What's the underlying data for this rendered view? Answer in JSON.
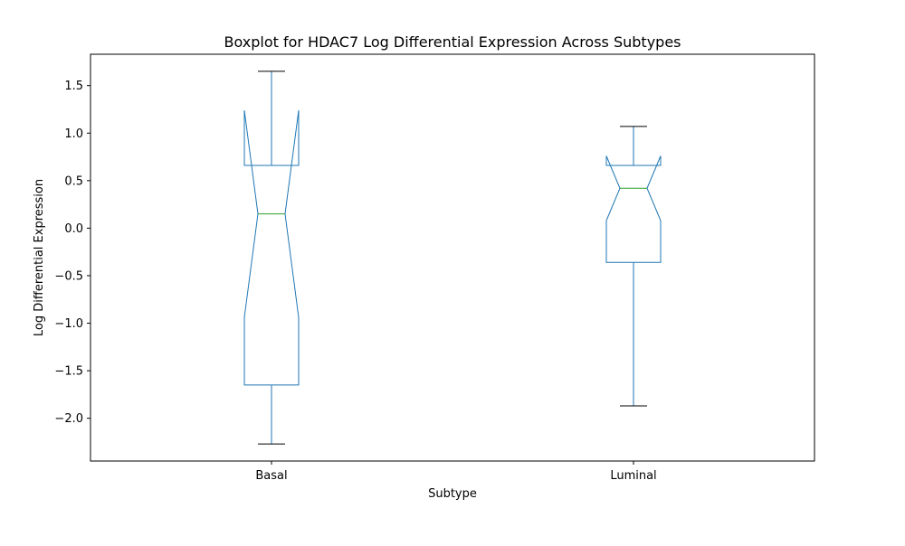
{
  "chart_data": {
    "type": "boxplot",
    "title": "Boxplot for HDAC7 Log Differential Expression Across Subtypes",
    "xlabel": "Subtype",
    "ylabel": "Log Differential Expression",
    "ylim": [
      -2.45,
      1.83
    ],
    "yticks": [
      -2.0,
      -1.5,
      -1.0,
      -0.5,
      0.0,
      0.5,
      1.0,
      1.5
    ],
    "ytick_labels": [
      "−2.0",
      "−1.5",
      "−1.0",
      "−0.5",
      "0.0",
      "0.5",
      "1.0",
      "1.5"
    ],
    "categories": [
      "Basal",
      "Luminal"
    ],
    "notched": true,
    "grid": false,
    "boxes": [
      {
        "category": "Basal",
        "whisker_low": -2.27,
        "q1": -1.65,
        "median": 0.15,
        "q3": 0.66,
        "whisker_high": 1.65,
        "notch_low": -0.94,
        "notch_high": 1.24
      },
      {
        "category": "Luminal",
        "whisker_low": -1.87,
        "q1": -0.36,
        "median": 0.42,
        "q3": 0.66,
        "whisker_high": 1.07,
        "notch_low": 0.08,
        "notch_high": 0.76
      }
    ],
    "colors": {
      "box": "#1f77b4",
      "median": "#2ca02c",
      "caps": "#000000"
    }
  }
}
